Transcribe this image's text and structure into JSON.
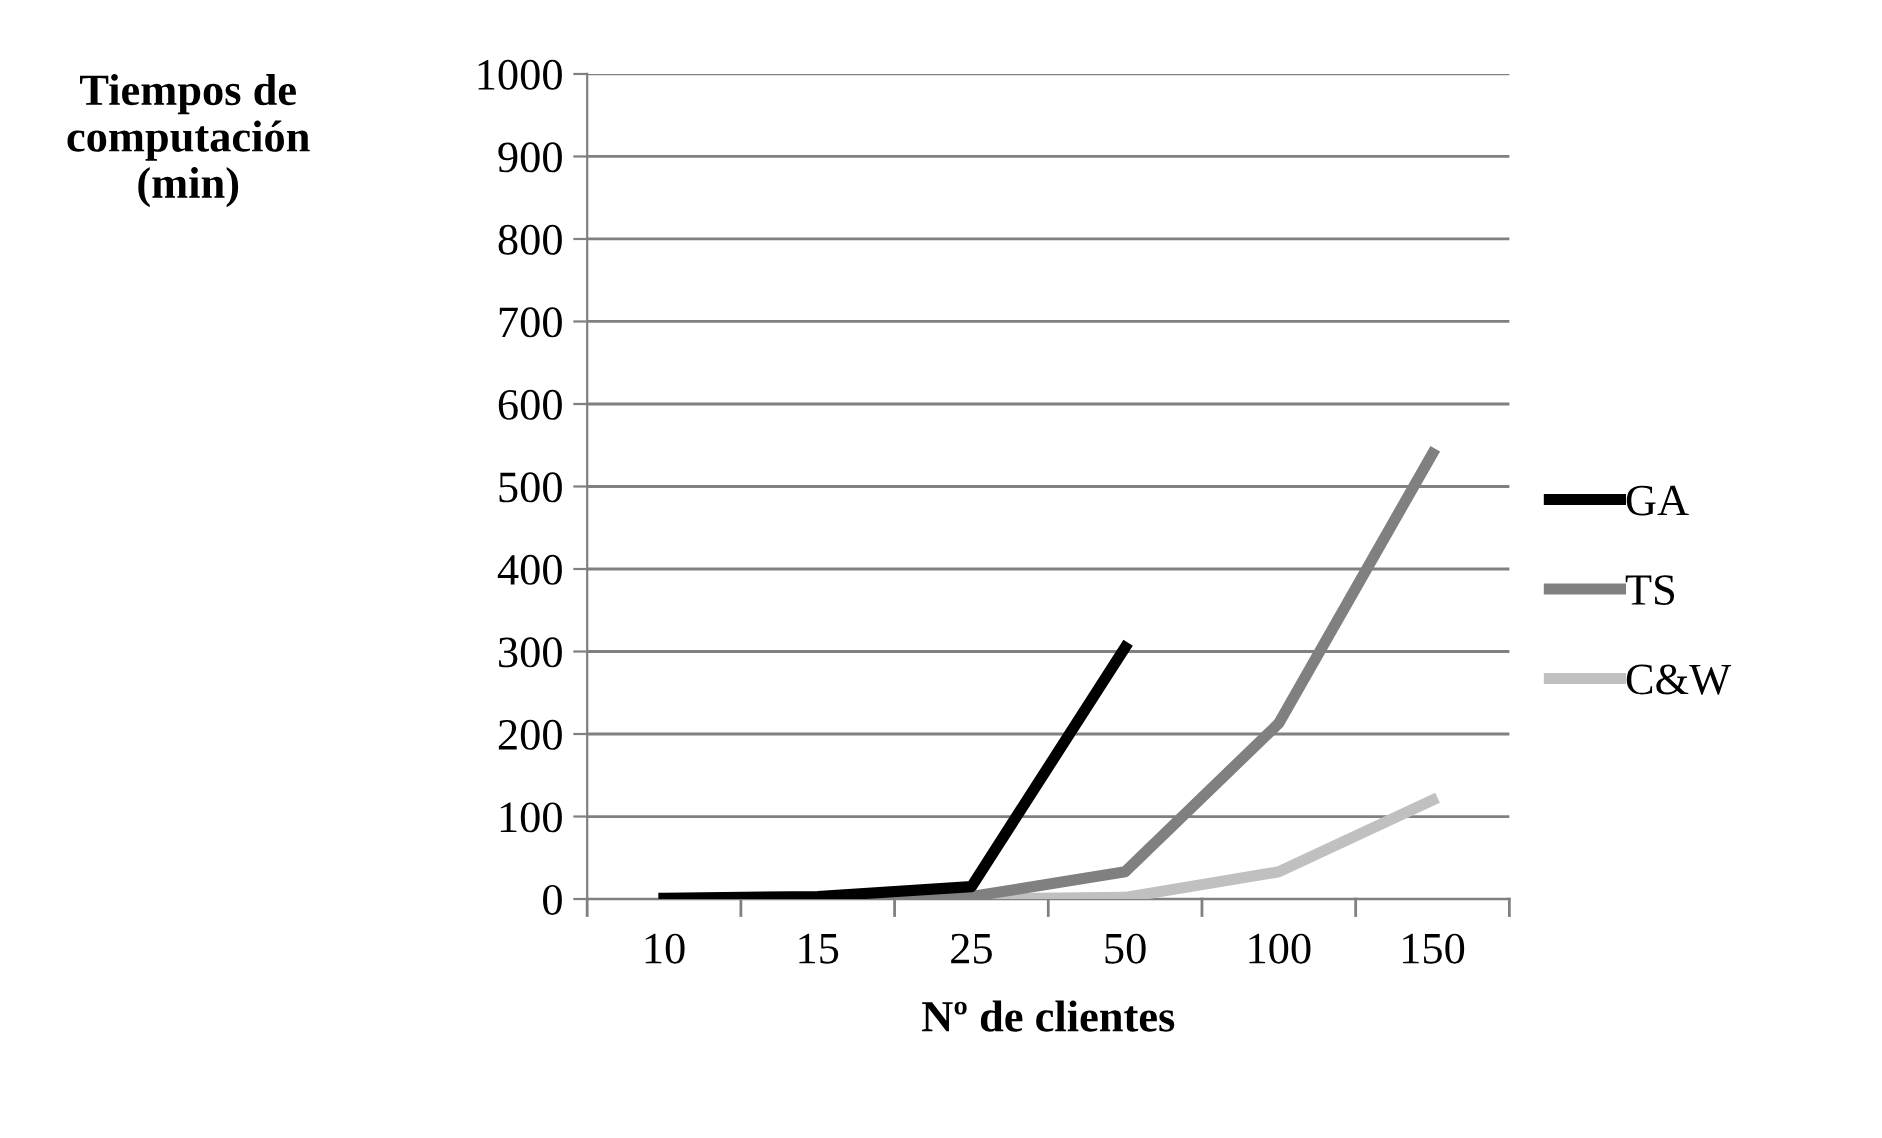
{
  "chart_data": {
    "type": "line",
    "xlabel": "Nº de clientes",
    "ylabel": "Tiempos de\ncomputación\n(min)",
    "categories": [
      "10",
      "15",
      "25",
      "50",
      "100",
      "150"
    ],
    "series": [
      {
        "name": "GA",
        "color": "#000000",
        "values": [
          1,
          3,
          15,
          305,
          null,
          null
        ]
      },
      {
        "name": "TS",
        "color": "#808080",
        "values": [
          0,
          1,
          3,
          33,
          213,
          540
        ]
      },
      {
        "name": "C&W",
        "color": "#c0c0c0",
        "values": [
          0,
          0,
          0,
          2,
          33,
          120
        ]
      }
    ],
    "ylim": [
      0,
      1000
    ],
    "yticks": [
      0,
      100,
      200,
      300,
      400,
      500,
      600,
      700,
      800,
      900,
      1000
    ],
    "grid": "y",
    "legend": "right",
    "marker": "none",
    "line_style": "solid"
  }
}
